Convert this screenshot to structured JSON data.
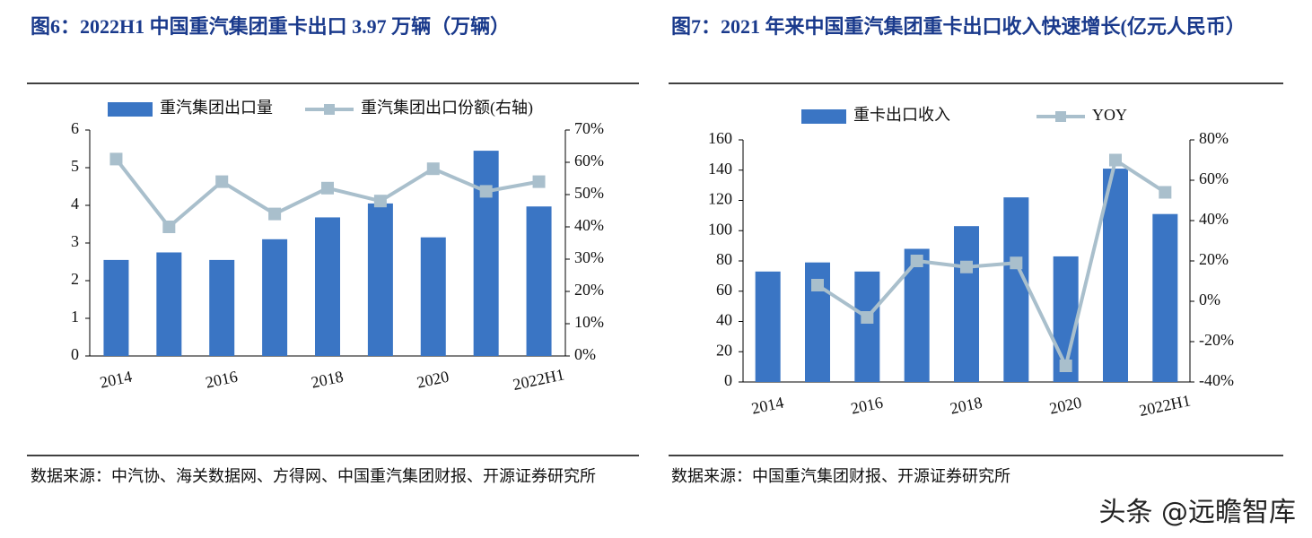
{
  "chart_data": [
    {
      "type": "bar-line",
      "title": "图6：2022H1 中国重汽集团重卡出口 3.97 万辆（万辆）",
      "source": "数据来源：中汽协、海关数据网、方得网、中国重汽集团财报、开源证券研究所",
      "categories": [
        "2014",
        null,
        "2016",
        null,
        "2018",
        null,
        "2020",
        null,
        "2022H1"
      ],
      "series": [
        {
          "name": "重汽集团出口量",
          "color": "#3a75c4",
          "kind": "bar",
          "values": [
            2.55,
            2.75,
            2.55,
            3.1,
            3.68,
            4.05,
            3.15,
            5.45,
            3.97
          ]
        },
        {
          "name": "重汽集团出口份额(右轴)",
          "color": "#a9bfcc",
          "kind": "line",
          "axis": "y2",
          "values": [
            61,
            40,
            54,
            44,
            52,
            48,
            58,
            51,
            54
          ]
        }
      ],
      "ylim": [
        0,
        6
      ],
      "yticks": [
        0,
        1,
        2,
        3,
        4,
        5,
        6
      ],
      "y2lim": [
        0,
        70
      ],
      "y2ticks": [
        {
          "value": 0,
          "label": "0%"
        },
        {
          "value": 10,
          "label": "10%"
        },
        {
          "value": 20,
          "label": "20%"
        },
        {
          "value": 30,
          "label": "30%"
        },
        {
          "value": 40,
          "label": "40%"
        },
        {
          "value": 50,
          "label": "50%"
        },
        {
          "value": 60,
          "label": "60%"
        },
        {
          "value": 70,
          "label": "70%"
        }
      ]
    },
    {
      "type": "bar-line",
      "title": "图7：2021 年来中国重汽集团重卡出口收入快速增长(亿元人民币）",
      "source": "数据来源：中国重汽集团财报、开源证券研究所",
      "categories": [
        "2014",
        null,
        "2016",
        null,
        "2018",
        null,
        "2020",
        null,
        "2022H1"
      ],
      "series": [
        {
          "name": "重卡出口收入",
          "color": "#3a75c4",
          "kind": "bar",
          "values": [
            73,
            79,
            73,
            88,
            103,
            122,
            83,
            141,
            111
          ]
        },
        {
          "name": "YOY",
          "color": "#a9bfcc",
          "kind": "line",
          "axis": "y2",
          "values": [
            null,
            8,
            -8,
            20,
            17,
            19,
            -32,
            70,
            54
          ]
        }
      ],
      "ylim": [
        0,
        160
      ],
      "yticks": [
        0,
        20,
        40,
        60,
        80,
        100,
        120,
        140,
        160
      ],
      "y2lim": [
        -40,
        80
      ],
      "y2ticks": [
        {
          "value": -40,
          "label": "-40%"
        },
        {
          "value": -20,
          "label": "-20%"
        },
        {
          "value": 0,
          "label": "0%"
        },
        {
          "value": 20,
          "label": "20%"
        },
        {
          "value": 40,
          "label": "40%"
        },
        {
          "value": 60,
          "label": "60%"
        },
        {
          "value": 80,
          "label": "80%"
        }
      ]
    }
  ],
  "watermark": "头条 @远瞻智库"
}
